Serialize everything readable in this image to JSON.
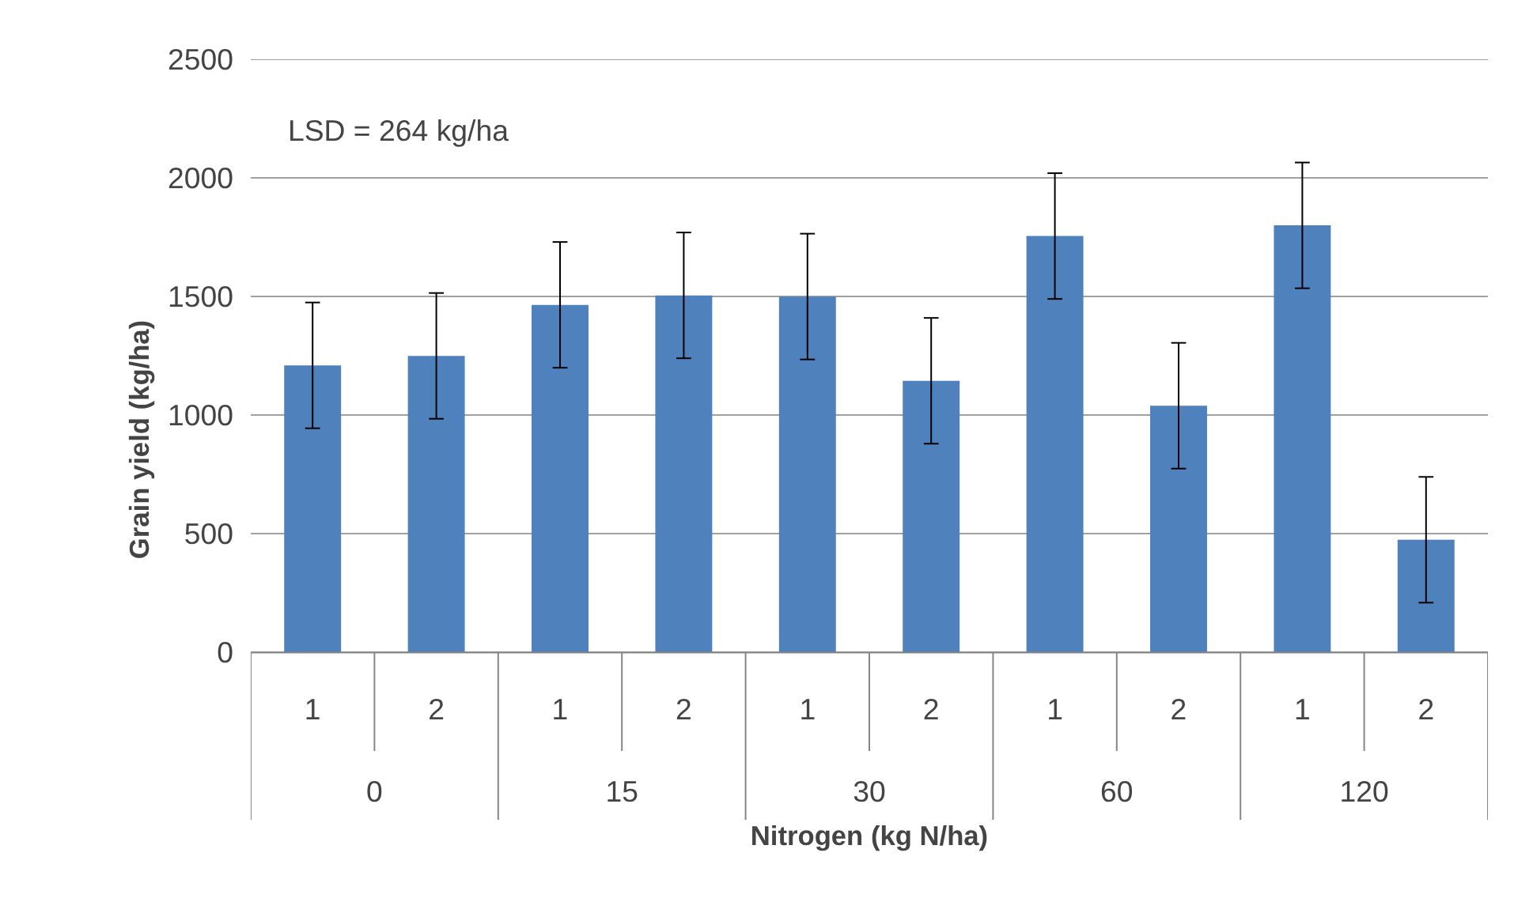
{
  "chart_data": {
    "type": "bar",
    "xlabel": "Nitrogen (kg N/ha)",
    "ylabel": "Grain yield (kg/ha)",
    "categories": [
      "1",
      "2",
      "1",
      "2",
      "1",
      "2",
      "1",
      "2",
      "1",
      "2"
    ],
    "values": [
      1210,
      1250,
      1465,
      1505,
      1500,
      1145,
      1755,
      1040,
      1800,
      475
    ],
    "errors": [
      265,
      265,
      265,
      265,
      265,
      265,
      265,
      265,
      265,
      265
    ],
    "color": "#4f81bd",
    "ylim": [
      0,
      2500
    ],
    "yticks": [
      0,
      500,
      1000,
      1500,
      2000,
      2500
    ],
    "grid": "y",
    "annotations": [
      "LSD = 264 kg/ha",
      "0",
      "15",
      "30",
      "60",
      "120"
    ]
  }
}
